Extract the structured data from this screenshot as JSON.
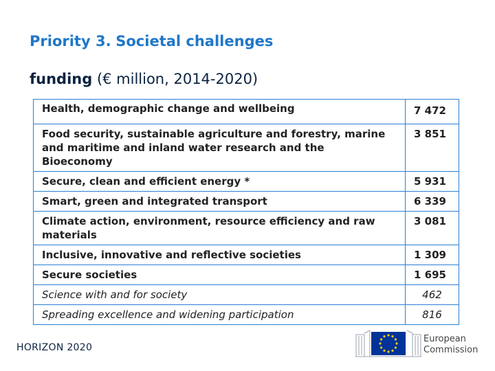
{
  "header": {
    "title_prefix": "Priority 3.",
    "title_main": "Societal challenges",
    "subtitle_bold": "funding",
    "subtitle_rest": "(€ million, 2014-2020)"
  },
  "table": {
    "rows": [
      {
        "name": "Health, demographic change and wellbeing",
        "value": "7 472",
        "italic": false
      },
      {
        "name": "Food security, sustainable agriculture and forestry, marine and maritime and inland water research and the Bioeconomy",
        "value": "3 851",
        "italic": false
      },
      {
        "name": "Secure, clean and efficient energy *",
        "value": "5 931",
        "italic": false
      },
      {
        "name": "Smart, green and integrated transport",
        "value": "6 339",
        "italic": false
      },
      {
        "name": "Climate action, environment, resource efficiency  and raw materials",
        "value": "3 081",
        "italic": false
      },
      {
        "name": "Inclusive, innovative and reflective societies",
        "value": "1 309",
        "italic": false
      },
      {
        "name": "Secure societies",
        "value": "1 695",
        "italic": false
      },
      {
        "name": "Science with and for society",
        "value": "462",
        "italic": true
      },
      {
        "name": "Spreading excellence and widening participation",
        "value": "816",
        "italic": true
      }
    ]
  },
  "footer": {
    "left_label": "HORIZON 2020",
    "logo_line1": "European",
    "logo_line2": "Commission"
  },
  "colors": {
    "title": "#1f78c8",
    "border": "#2a7fd4",
    "eu_blue": "#003399",
    "eu_yellow": "#ffcc00"
  }
}
